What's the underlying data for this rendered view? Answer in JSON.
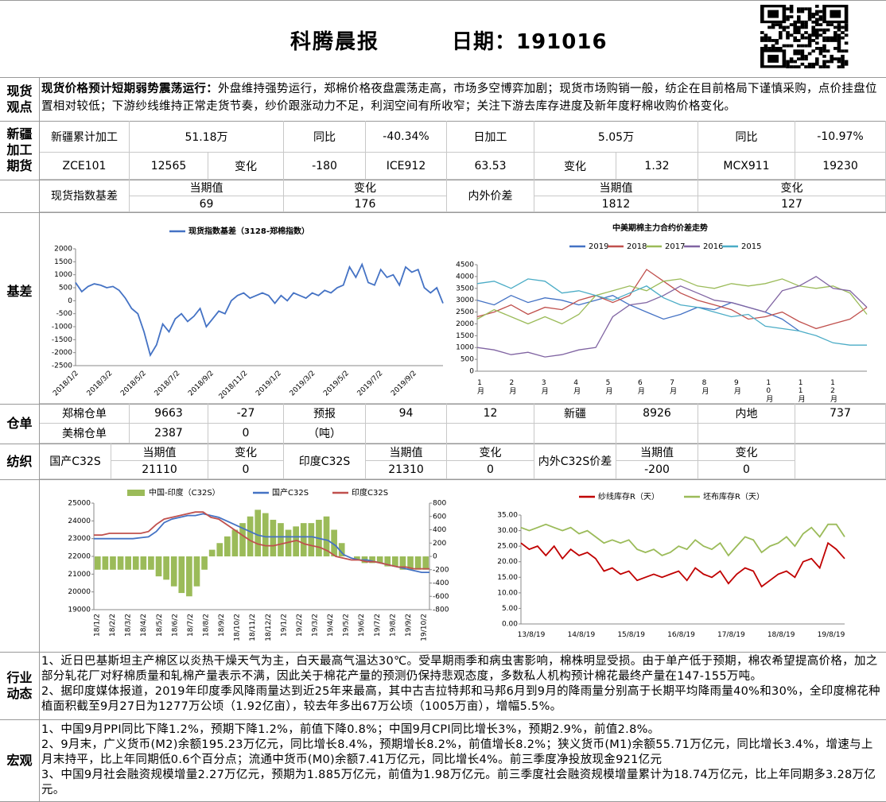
{
  "header": {
    "title": "科腾晨报",
    "date": "日期：191016"
  },
  "spot_view": {
    "label": "现货观点",
    "heading": "现货价格预计短期弱势震荡运行：",
    "text": "外盘维持强势运行，郑棉价格夜盘震荡走高，市场多空博弈加剧；现货市场购销一般，纺企在目前格局下谨慎采购，点价挂盘位置相对较低；下游纱线维持正常走货节奏，纱价跟涨动力不足，利润空间有所收窄；关注下游去库存进度及新年度籽棉收购价格变化。"
  },
  "futures": {
    "label": "新疆加工期货",
    "rows": [
      [
        "新疆累计加工",
        "51.18万",
        "同比",
        "-40.34%",
        "日加工",
        "5.05万",
        "同比",
        "-10.97%"
      ],
      [
        "ZCE101",
        "12565",
        "变化",
        "-180",
        "ICE912",
        "63.53",
        "变化",
        "1.32",
        "MCX911",
        "19230"
      ]
    ]
  },
  "basis": {
    "label": "基差",
    "header": [
      "现货指数基差",
      "当期值",
      "变化",
      "内外价差",
      "当期值",
      "变化"
    ],
    "values": [
      "69",
      "176",
      "1812",
      "127"
    ]
  },
  "warehouse": {
    "label": "仓单",
    "rows": [
      [
        "郑棉仓单",
        "9663",
        "-27",
        "预报",
        "94",
        "12",
        "新疆",
        "8926",
        "内地",
        "737"
      ],
      [
        "美棉仓单",
        "2387",
        "0",
        "（吨）"
      ]
    ]
  },
  "textile": {
    "label": "纺织",
    "header": [
      "国产C32S",
      "当期值",
      "变化",
      "印度C32S",
      "当期值",
      "变化",
      "内外C32S价差",
      "当期值",
      "变化"
    ],
    "values": [
      "21110",
      "0",
      "21310",
      "0",
      "-200",
      "0"
    ]
  },
  "industry": {
    "label": "行业动态",
    "paragraphs": [
      "1、近日巴基斯坦主产棉区以炎热干燥天气为主，白天最高气温达30℃。受旱期雨季和病虫害影响，棉株明显受损。由于单产低于预期，棉农希望提高价格，加之部分轧花厂对籽棉质量和轧棉产量表示不满，因此关于棉花产量的预测仍保持悲观态度，多数私人机构预计棉花最终产量在147-155万吨。",
      "2、据印度媒体报道，2019年印度季风降雨量达到近25年来最高，其中古吉拉特邦和马邦6月到9月的降雨量分别高于长期平均降雨量40%和30%，全印度棉花种植面积截至9月27日为1277万公顷（1.92亿亩），较去年多出67万公顷（1005万亩），增幅5.5%。"
    ]
  },
  "macro": {
    "label": "宏观",
    "paragraphs": [
      "1、中国9月PPI同比下降1.2%，预期下降1.2%，前值下降0.8%；中国9月CPI同比增长3%，预期2.9%，前值2.8%。",
      "2、9月末，广义货币(M2)余额195.23万亿元，同比增长8.4%，预期增长8.2%，前值增长8.2%；狭义货币(M1)余额55.71万亿元，同比增长3.4%，增速与上月末持平，比上年同期低0.6个百分点；流通中货币(M0)余额7.41万亿元，同比增长4%。前三季度净投放现金921亿元",
      "3、中国9月社会融资规模增量2.27万亿元，预期为1.885万亿元，前值为1.98万亿元。前三季度社会融资规模增量累计为18.74万亿元，比上年同期多3.28万亿元。"
    ]
  },
  "charts": [
    {
      "type": "line",
      "xticks": [
        "2018/1/2",
        "2018/3/2",
        "2018/5/2",
        "2018/7/2",
        "2018/9/2",
        "2018/11/2",
        "2019/1/2",
        "2019/3/2",
        "2019/5/2",
        "2019/7/2",
        "2019/9/2"
      ],
      "ylim": [
        -2500,
        2000
      ],
      "yticks": [
        2000,
        1500,
        1000,
        500,
        0,
        -500,
        -1000,
        -1500,
        -2000,
        -2500
      ],
      "series": [
        {
          "name": "现货指数基差（3128-郑棉指数）",
          "color": "#4472c4",
          "values": [
            700,
            350,
            550,
            650,
            600,
            500,
            550,
            400,
            100,
            -300,
            -500,
            -1200,
            -2100,
            -1700,
            -900,
            -1200,
            -700,
            -500,
            -800,
            -600,
            -300,
            -1000,
            -700,
            -400,
            -500,
            0,
            200,
            300,
            100,
            200,
            300,
            200,
            -100,
            200,
            0,
            300,
            200,
            100,
            300,
            200,
            400,
            300,
            500,
            600,
            1300,
            900,
            1400,
            700,
            600,
            1200,
            900,
            1000,
            600,
            1300,
            1100,
            1200,
            500,
            300,
            500,
            -100
          ]
        }
      ]
    },
    {
      "type": "line",
      "title": "中美期棉主力合约价差走势",
      "xticks": [
        "1月",
        "2月",
        "3月",
        "4月",
        "5月",
        "6月",
        "7月",
        "8月",
        "9月",
        "10月",
        "11月",
        "12月"
      ],
      "ylim": [
        0,
        4500
      ],
      "yticks": [
        0,
        500,
        1000,
        1500,
        2000,
        2500,
        3000,
        3500,
        4000,
        4500
      ],
      "points": 24,
      "series": [
        {
          "name": "2019",
          "color": "#4472c4",
          "values": [
            3000,
            2800,
            3200,
            2900,
            3100,
            3000,
            2800,
            3000,
            3200,
            2800,
            2500,
            2200,
            2400,
            2700,
            2600,
            2900,
            2700,
            2500,
            2200,
            1700
          ]
        },
        {
          "name": "2018",
          "color": "#c0504d",
          "values": [
            2300,
            2500,
            2800,
            2400,
            2700,
            2600,
            3000,
            3200,
            2900,
            3200,
            4300,
            3800,
            3300,
            3000,
            2800,
            2600,
            2200,
            2300,
            2500,
            2100,
            1800,
            2000,
            2200,
            2700
          ]
        },
        {
          "name": "2017",
          "color": "#9bbb59",
          "values": [
            2200,
            2600,
            2300,
            2000,
            2300,
            2000,
            2400,
            3200,
            3400,
            3600,
            3400,
            3800,
            3900,
            3600,
            3500,
            3700,
            3600,
            3700,
            3900,
            3600,
            3500,
            3600,
            3300,
            2400
          ]
        },
        {
          "name": "2016",
          "color": "#8064a2",
          "values": [
            1000,
            900,
            700,
            800,
            600,
            700,
            900,
            1000,
            2300,
            2800,
            2900,
            3200,
            3600,
            3300,
            3000,
            2900,
            2700,
            2500,
            3400,
            3600,
            4000,
            3500,
            3400,
            2700
          ]
        },
        {
          "name": "2015",
          "color": "#4bacc6",
          "values": [
            3700,
            3800,
            3500,
            3900,
            3800,
            3300,
            3400,
            3200,
            3000,
            3300,
            3600,
            3100,
            2800,
            2700,
            2500,
            2300,
            2400,
            1900,
            1800,
            1700,
            1500,
            1200,
            1100,
            1100
          ]
        }
      ]
    },
    {
      "type": "bar_line",
      "xticks": [
        "18/1/2",
        "18/2/2",
        "18/3/2",
        "18/4/2",
        "18/5/2",
        "18/6/2",
        "18/7/2",
        "18/8/2",
        "18/9/2",
        "18/10/2",
        "18/11/2",
        "18/12/2",
        "19/1/2",
        "19/2/2",
        "19/3/2",
        "19/4/2",
        "19/5/2",
        "19/6/2",
        "19/7/2",
        "19/8/2",
        "19/9/2",
        "19/10/2"
      ],
      "ylim": [
        19000,
        25000
      ],
      "yticks": [
        19000,
        20000,
        21000,
        22000,
        23000,
        24000,
        25000
      ],
      "y2lim": [
        -800,
        800
      ],
      "y2ticks": [
        -800,
        -600,
        -400,
        -200,
        0,
        200,
        400,
        600,
        800
      ],
      "series": [
        {
          "name": "中国-印度（C32S）",
          "color": "#9bbb59",
          "axis": "y2",
          "kind": "bar",
          "values": [
            -200,
            -200,
            -200,
            -200,
            -200,
            -200,
            -200,
            -200,
            -300,
            -350,
            -450,
            -550,
            -600,
            -450,
            -200,
            100,
            200,
            300,
            400,
            500,
            600,
            700,
            650,
            550,
            500,
            400,
            450,
            500,
            500,
            550,
            600,
            400,
            200,
            0,
            -50,
            -100,
            -100,
            -100,
            -150,
            -150,
            -200,
            -200,
            -200,
            -200
          ]
        },
        {
          "name": "国产C32S",
          "color": "#4472c4",
          "kind": "line",
          "values": [
            23000,
            23000,
            23000,
            23000,
            23000,
            23000,
            23050,
            23100,
            23400,
            23900,
            24100,
            24200,
            24300,
            24300,
            24400,
            24300,
            24200,
            24000,
            23800,
            23600,
            23400,
            23200,
            23100,
            23100,
            23100,
            23100,
            23100,
            23100,
            23100,
            23000,
            22900,
            22600,
            22100,
            21900,
            21800,
            21800,
            21700,
            21600,
            21500,
            21400,
            21300,
            21200,
            21100,
            21100
          ]
        },
        {
          "name": "印度C32S",
          "color": "#c0504d",
          "kind": "line",
          "values": [
            23200,
            23200,
            23300,
            23300,
            23300,
            23300,
            23300,
            23400,
            23800,
            24100,
            24200,
            24300,
            24400,
            24500,
            24500,
            24200,
            24100,
            23800,
            23500,
            23200,
            22900,
            22700,
            22600,
            22600,
            22700,
            22800,
            22900,
            22700,
            22600,
            22500,
            22300,
            22000,
            21900,
            21800,
            21800,
            21700,
            21700,
            21600,
            21500,
            21400,
            21400,
            21300,
            21300,
            21300
          ]
        }
      ]
    },
    {
      "type": "line",
      "xticks": [
        "13/8/19",
        "14/8/19",
        "15/8/19",
        "16/8/19",
        "17/8/19",
        "18/8/19",
        "19/8/19"
      ],
      "ylim": [
        0,
        35
      ],
      "yticks": [
        {
          "value": 0,
          "label": "0.00"
        },
        {
          "value": 5,
          "label": "5.00"
        },
        {
          "value": 10,
          "label": "10.00"
        },
        {
          "value": 15,
          "label": "15.00"
        },
        {
          "value": 20,
          "label": "20.00"
        },
        {
          "value": 25,
          "label": "25.00"
        },
        {
          "value": 30,
          "label": "30.00"
        },
        {
          "value": 35,
          "label": "35.00"
        }
      ],
      "series": [
        {
          "name": "纱线库存R（天）",
          "color": "#c00000",
          "values": [
            26,
            24,
            25,
            22,
            25,
            21,
            24,
            22,
            23,
            21,
            17,
            18,
            16,
            17,
            14,
            15,
            16,
            15,
            16,
            17,
            14,
            18,
            16,
            15,
            17,
            13,
            16,
            18,
            17,
            12,
            14,
            16,
            17,
            15,
            20,
            21,
            18,
            26,
            24,
            21
          ]
        },
        {
          "name": "坯布库存R（天）",
          "color": "#9bbb59",
          "values": [
            31,
            30,
            31,
            32,
            31,
            30,
            31,
            29,
            30,
            28,
            26,
            27,
            26,
            27,
            24,
            23,
            24,
            22,
            23,
            25,
            24,
            27,
            25,
            24,
            26,
            22,
            25,
            28,
            27,
            23,
            25,
            26,
            28,
            25,
            29,
            31,
            28,
            32,
            32,
            28
          ]
        }
      ]
    }
  ]
}
